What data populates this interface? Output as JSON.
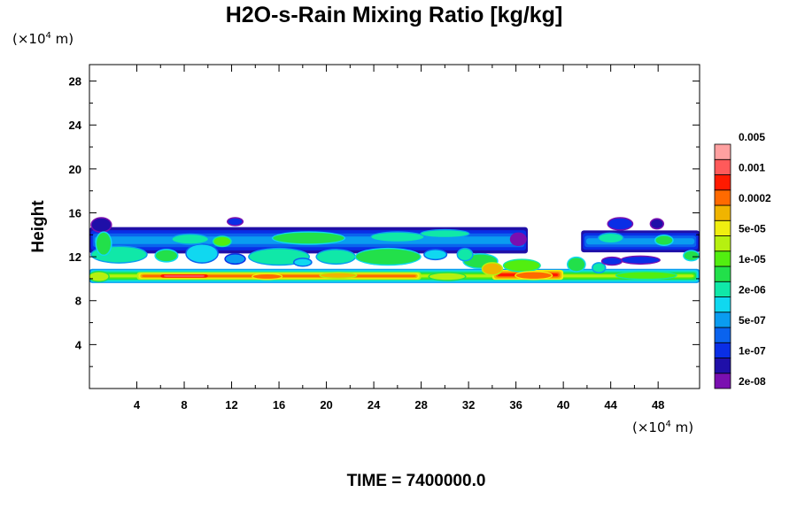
{
  "chart_data": {
    "type": "heatmap",
    "title": "H2O-s-Rain Mixing Ratio [kg/kg]",
    "ylabel": "Height",
    "x_unit": {
      "prefix": "(×10",
      "exp": "4",
      "suffix": " m)"
    },
    "y_unit": {
      "prefix": "(×10",
      "exp": "4",
      "suffix": " m)"
    },
    "footer": "TIME = 7400000.0",
    "xlim": [
      0,
      51.5
    ],
    "ylim": [
      0,
      29.5
    ],
    "x_ticks": [
      4,
      8,
      12,
      16,
      20,
      24,
      28,
      32,
      36,
      40,
      44,
      48
    ],
    "y_ticks": [
      4,
      8,
      12,
      16,
      20,
      24,
      28
    ],
    "colorbar": {
      "colors": [
        "#7a0fb0",
        "#1f0fa8",
        "#0a2ee6",
        "#0a63ee",
        "#0a9cf0",
        "#10d8f0",
        "#10e8a8",
        "#22e04a",
        "#52ee10",
        "#b6f010",
        "#f0ee10",
        "#f0b400",
        "#ff6a00",
        "#ff1a00",
        "#ff5a5a",
        "#ffa0a0"
      ],
      "labels": [
        {
          "text": "2e-08",
          "level": 0.5
        },
        {
          "text": "1e-07",
          "level": 2.5
        },
        {
          "text": "5e-07",
          "level": 4.5
        },
        {
          "text": "2e-06",
          "level": 6.5
        },
        {
          "text": "1e-05",
          "level": 8.5
        },
        {
          "text": "5e-05",
          "level": 10.5
        },
        {
          "text": "0.0002",
          "level": 12.5
        },
        {
          "text": "0.001",
          "level": 14.5
        },
        {
          "text": "0.005",
          "level": 16.5
        }
      ]
    },
    "layers": [
      {
        "x0": 0,
        "x1": 37,
        "y0": 12.3,
        "y1": 14.7,
        "outer": 1,
        "inner": 4
      },
      {
        "x0": 41.5,
        "x1": 51.5,
        "y0": 12.4,
        "y1": 14.4,
        "outer": 1,
        "inner": 4
      },
      {
        "x0": 0,
        "x1": 51.5,
        "y0": 9.6,
        "y1": 10.9,
        "outer": 4,
        "inner": 9
      },
      {
        "x0": 4,
        "x1": 28,
        "y0": 9.9,
        "y1": 10.6,
        "outer": 9,
        "inner": 12
      },
      {
        "x0": 34,
        "x1": 40,
        "y0": 9.9,
        "y1": 10.8,
        "outer": 10,
        "inner": 13
      },
      {
        "x0": 6,
        "x1": 10,
        "y0": 10.1,
        "y1": 10.4,
        "outer": 13,
        "inner": 14
      }
    ],
    "patches": [
      {
        "x": 1,
        "y": 14.9,
        "rx": 0.8,
        "ry": 0.6,
        "level": 1
      },
      {
        "x": 12.3,
        "y": 15.2,
        "rx": 0.6,
        "ry": 0.3,
        "level": 2
      },
      {
        "x": 44.8,
        "y": 15.0,
        "rx": 1.0,
        "ry": 0.5,
        "level": 2
      },
      {
        "x": 47.9,
        "y": 15.0,
        "rx": 0.5,
        "ry": 0.4,
        "level": 1
      },
      {
        "x": 36.2,
        "y": 13.6,
        "rx": 0.6,
        "ry": 0.5,
        "level": 0
      },
      {
        "x": 2.5,
        "y": 12.2,
        "rx": 2.3,
        "ry": 0.7,
        "level": 6
      },
      {
        "x": 6.5,
        "y": 12.1,
        "rx": 0.9,
        "ry": 0.5,
        "level": 7
      },
      {
        "x": 9.5,
        "y": 12.3,
        "rx": 1.3,
        "ry": 0.8,
        "level": 5
      },
      {
        "x": 12.3,
        "y": 11.8,
        "rx": 0.8,
        "ry": 0.4,
        "level": 4
      },
      {
        "x": 16.0,
        "y": 12.0,
        "rx": 2.5,
        "ry": 0.7,
        "level": 6
      },
      {
        "x": 20.8,
        "y": 12.0,
        "rx": 1.6,
        "ry": 0.6,
        "level": 6
      },
      {
        "x": 25.2,
        "y": 12.0,
        "rx": 2.7,
        "ry": 0.7,
        "level": 7
      },
      {
        "x": 29.2,
        "y": 12.2,
        "rx": 0.9,
        "ry": 0.4,
        "level": 5
      },
      {
        "x": 33.0,
        "y": 11.6,
        "rx": 1.4,
        "ry": 0.6,
        "level": 7
      },
      {
        "x": 31.7,
        "y": 12.2,
        "rx": 0.6,
        "ry": 0.5,
        "level": 6
      },
      {
        "x": 18.0,
        "y": 11.5,
        "rx": 0.7,
        "ry": 0.3,
        "level": 5
      },
      {
        "x": 34.0,
        "y": 10.9,
        "rx": 0.8,
        "ry": 0.5,
        "level": 11
      },
      {
        "x": 36.5,
        "y": 11.2,
        "rx": 1.5,
        "ry": 0.5,
        "level": 8
      },
      {
        "x": 41.1,
        "y": 11.3,
        "rx": 0.7,
        "ry": 0.6,
        "level": 7
      },
      {
        "x": 43.0,
        "y": 11.0,
        "rx": 0.5,
        "ry": 0.4,
        "level": 6
      },
      {
        "x": 46.5,
        "y": 11.7,
        "rx": 1.6,
        "ry": 0.3,
        "level": 2
      },
      {
        "x": 44.1,
        "y": 11.6,
        "rx": 0.8,
        "ry": 0.3,
        "level": 2
      },
      {
        "x": 50.8,
        "y": 12.1,
        "rx": 0.6,
        "ry": 0.4,
        "level": 7
      },
      {
        "x": 18.5,
        "y": 13.7,
        "rx": 3.0,
        "ry": 0.5,
        "level": 7
      },
      {
        "x": 26.0,
        "y": 13.8,
        "rx": 2.2,
        "ry": 0.4,
        "level": 6
      },
      {
        "x": 8.5,
        "y": 13.6,
        "rx": 1.5,
        "ry": 0.4,
        "level": 6
      },
      {
        "x": 11.2,
        "y": 13.4,
        "rx": 0.7,
        "ry": 0.4,
        "level": 8
      },
      {
        "x": 1.2,
        "y": 13.2,
        "rx": 0.6,
        "ry": 1.0,
        "level": 7
      },
      {
        "x": 44.0,
        "y": 13.7,
        "rx": 1.0,
        "ry": 0.4,
        "level": 6
      },
      {
        "x": 48.5,
        "y": 13.5,
        "rx": 0.7,
        "ry": 0.4,
        "level": 7
      },
      {
        "x": 30.0,
        "y": 14.1,
        "rx": 2.0,
        "ry": 0.3,
        "level": 6
      },
      {
        "x": 37.5,
        "y": 10.3,
        "rx": 1.5,
        "ry": 0.3,
        "level": 12
      },
      {
        "x": 15.0,
        "y": 10.2,
        "rx": 1.2,
        "ry": 0.2,
        "level": 12
      },
      {
        "x": 21.0,
        "y": 10.3,
        "rx": 1.5,
        "ry": 0.2,
        "level": 11
      },
      {
        "x": 47.0,
        "y": 10.3,
        "rx": 2.5,
        "ry": 0.3,
        "level": 8
      },
      {
        "x": 30.2,
        "y": 10.2,
        "rx": 1.5,
        "ry": 0.3,
        "level": 9
      },
      {
        "x": 0.8,
        "y": 10.2,
        "rx": 0.8,
        "ry": 0.4,
        "level": 9
      }
    ]
  }
}
